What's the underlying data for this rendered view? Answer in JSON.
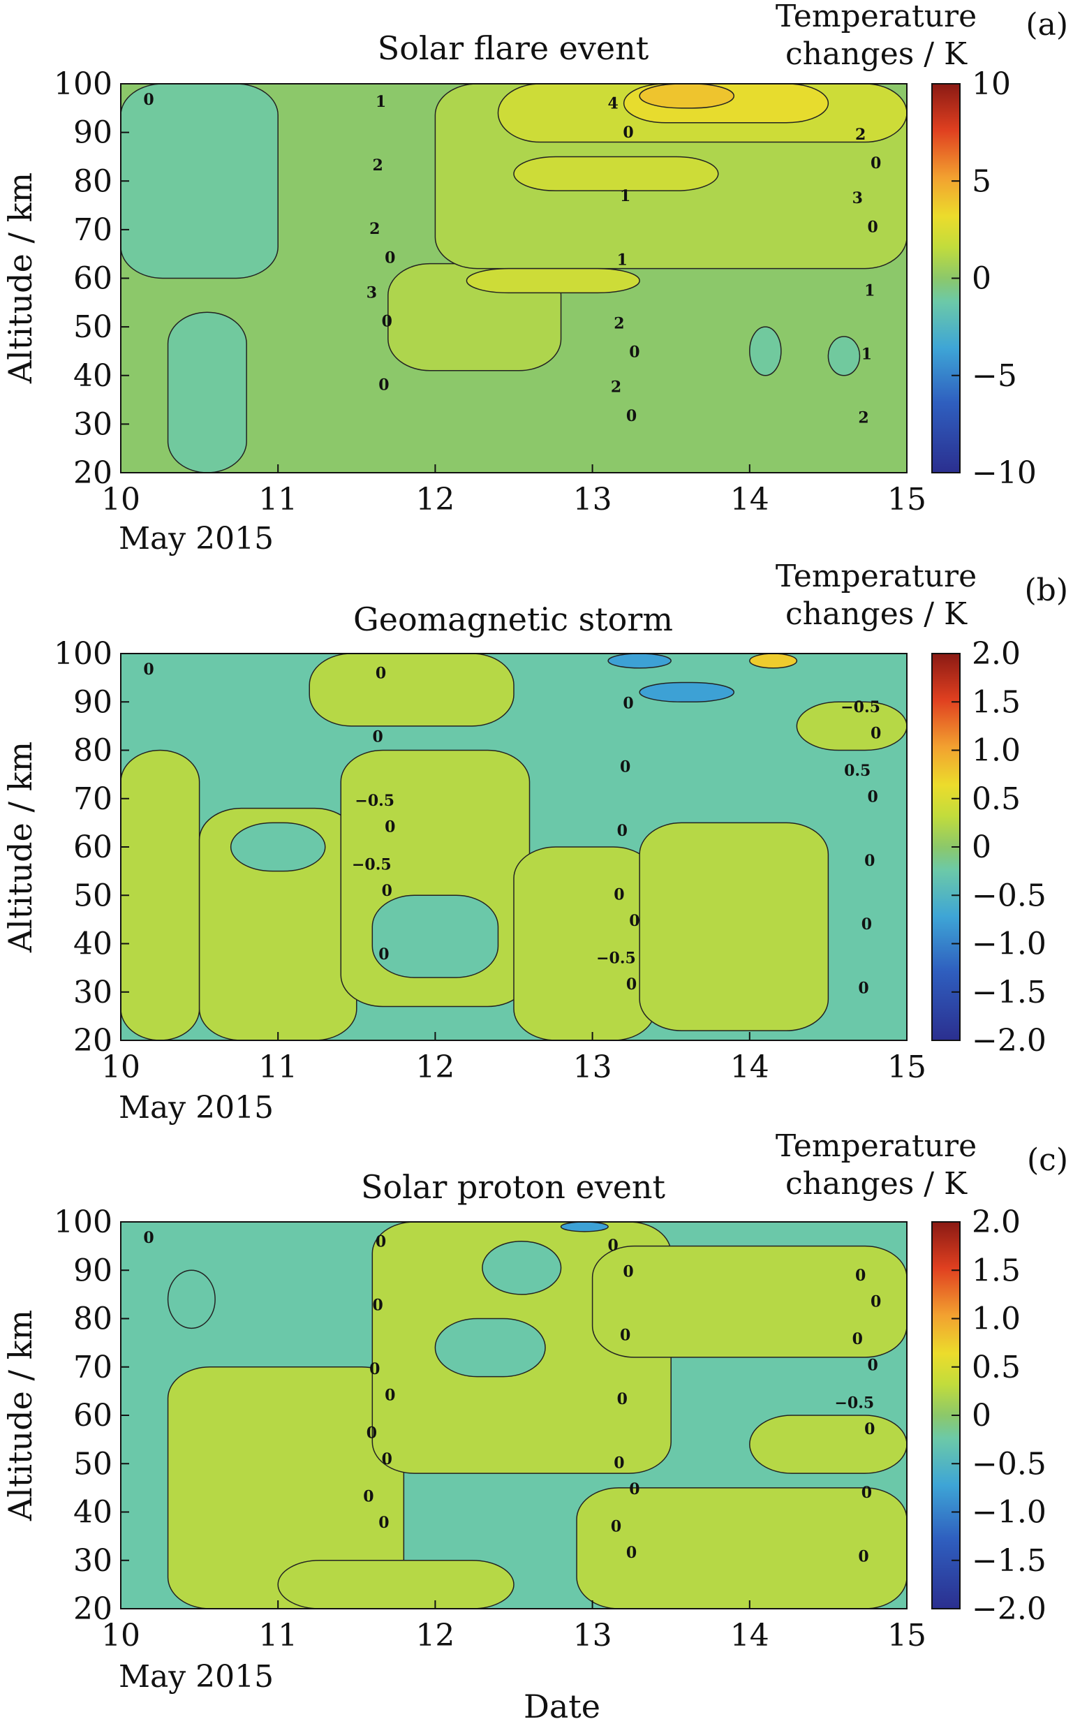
{
  "figure": {
    "x_axis_title": "Date",
    "date_caption": "May 2015"
  },
  "chart_data": [
    {
      "type": "heatmap",
      "panel_letter": "(a)",
      "title": "Solar flare event",
      "xlabel": "",
      "ylabel": "Altitude / km",
      "colorbar_title_line1": "Temperature",
      "colorbar_title_line2": "changes / K",
      "x_ticks": [
        "10",
        "11",
        "12",
        "13",
        "14",
        "15"
      ],
      "y_ticks": [
        "20",
        "30",
        "40",
        "50",
        "60",
        "70",
        "80",
        "90",
        "100"
      ],
      "xlim": [
        10,
        15
      ],
      "ylim": [
        20,
        100
      ],
      "colorbar_ticks": [
        "10",
        "5",
        "0",
        "−5",
        "−10"
      ],
      "colorbar_range": [
        -10,
        10
      ],
      "contour_labels": [
        "0",
        "0",
        "0",
        "0",
        "0",
        "0",
        "0",
        "0",
        "0",
        "1",
        "1",
        "1",
        "1",
        "1",
        "2",
        "2",
        "2",
        "2",
        "2",
        "2",
        "3",
        "3",
        "4"
      ],
      "regions": [
        {
          "level": 0,
          "x_range": [
            10,
            15
          ],
          "y_range": [
            20,
            100
          ]
        },
        {
          "level": -1,
          "x_range": [
            10.0,
            11.0
          ],
          "y_range": [
            60,
            100
          ]
        },
        {
          "level": -1,
          "x_range": [
            10.3,
            10.8
          ],
          "y_range": [
            20,
            53
          ]
        },
        {
          "level": 1,
          "x_range": [
            11.7,
            12.8
          ],
          "y_range": [
            41,
            63
          ]
        },
        {
          "level": 1,
          "x_range": [
            12.0,
            15.0
          ],
          "y_range": [
            62,
            100
          ]
        },
        {
          "level": 2,
          "x_range": [
            12.2,
            13.3
          ],
          "y_range": [
            57,
            62
          ]
        },
        {
          "level": 2,
          "x_range": [
            12.5,
            13.8
          ],
          "y_range": [
            78,
            85
          ]
        },
        {
          "level": 2,
          "x_range": [
            12.4,
            15.0
          ],
          "y_range": [
            88,
            100
          ]
        },
        {
          "level": 3,
          "x_range": [
            13.2,
            14.5
          ],
          "y_range": [
            92,
            100
          ]
        },
        {
          "level": 4,
          "x_range": [
            13.3,
            13.9
          ],
          "y_range": [
            95,
            100
          ]
        },
        {
          "level": -1,
          "x_range": [
            14.0,
            14.2
          ],
          "y_range": [
            40,
            50
          ]
        },
        {
          "level": -1,
          "x_range": [
            14.5,
            14.7
          ],
          "y_range": [
            40,
            48
          ]
        }
      ]
    },
    {
      "type": "heatmap",
      "panel_letter": "(b)",
      "title": "Geomagnetic storm",
      "xlabel": "",
      "ylabel": "Altitude / km",
      "colorbar_title_line1": "Temperature",
      "colorbar_title_line2": "changes / K",
      "x_ticks": [
        "10",
        "11",
        "12",
        "13",
        "14",
        "15"
      ],
      "y_ticks": [
        "20",
        "30",
        "40",
        "50",
        "60",
        "70",
        "80",
        "90",
        "100"
      ],
      "xlim": [
        10,
        15
      ],
      "ylim": [
        20,
        100
      ],
      "colorbar_ticks": [
        "2.0",
        "1.5",
        "1.0",
        "0.5",
        "0",
        "−0.5",
        "−1.0",
        "−1.5",
        "−2.0"
      ],
      "colorbar_range": [
        -2,
        2
      ],
      "contour_labels": [
        "0",
        "0",
        "0",
        "0",
        "0",
        "0",
        "0",
        "0",
        "0",
        "0",
        "0",
        "0",
        "0",
        "0",
        "0",
        "0",
        "0",
        "−0.5",
        "−0.5",
        "−0.5",
        "−0.5",
        "0.5"
      ],
      "regions": [
        {
          "level": -0.25,
          "x_range": [
            10,
            15
          ],
          "y_range": [
            20,
            100
          ]
        },
        {
          "level": 0.25,
          "x_range": [
            10.0,
            10.5
          ],
          "y_range": [
            20,
            80
          ]
        },
        {
          "level": 0.25,
          "x_range": [
            10.5,
            11.5
          ],
          "y_range": [
            20,
            68
          ]
        },
        {
          "level": 0.25,
          "x_range": [
            11.4,
            12.6
          ],
          "y_range": [
            27,
            80
          ]
        },
        {
          "level": 0.25,
          "x_range": [
            12.5,
            13.4
          ],
          "y_range": [
            20,
            60
          ]
        },
        {
          "level": 0.25,
          "x_range": [
            13.3,
            14.5
          ],
          "y_range": [
            22,
            65
          ]
        },
        {
          "level": 0.25,
          "x_range": [
            11.2,
            12.5
          ],
          "y_range": [
            85,
            100
          ]
        },
        {
          "level": 0.25,
          "x_range": [
            14.3,
            15.0
          ],
          "y_range": [
            80,
            90
          ]
        },
        {
          "level": -0.25,
          "x_range": [
            11.6,
            12.4
          ],
          "y_range": [
            33,
            50
          ]
        },
        {
          "level": -0.25,
          "x_range": [
            10.7,
            11.3
          ],
          "y_range": [
            55,
            65
          ]
        },
        {
          "level": -0.75,
          "x_range": [
            13.3,
            13.9
          ],
          "y_range": [
            90,
            94
          ]
        },
        {
          "level": -0.75,
          "x_range": [
            13.1,
            13.5
          ],
          "y_range": [
            97,
            100
          ]
        },
        {
          "level": 0.75,
          "x_range": [
            14.0,
            14.3
          ],
          "y_range": [
            97,
            100
          ]
        }
      ]
    },
    {
      "type": "heatmap",
      "panel_letter": "(c)",
      "title": "Solar proton event",
      "xlabel": "Date",
      "ylabel": "Altitude / km",
      "colorbar_title_line1": "Temperature",
      "colorbar_title_line2": "changes / K",
      "x_ticks": [
        "10",
        "11",
        "12",
        "13",
        "14",
        "15"
      ],
      "y_ticks": [
        "20",
        "30",
        "40",
        "50",
        "60",
        "70",
        "80",
        "90",
        "100"
      ],
      "xlim": [
        10,
        15
      ],
      "ylim": [
        20,
        100
      ],
      "colorbar_ticks": [
        "2.0",
        "1.5",
        "1.0",
        "0.5",
        "0",
        "−0.5",
        "−1.0",
        "−1.5",
        "−2.0"
      ],
      "colorbar_range": [
        -2,
        2
      ],
      "contour_labels": [
        "0",
        "0",
        "0",
        "0",
        "0",
        "0",
        "0",
        "0",
        "0",
        "0",
        "0",
        "0",
        "0",
        "0",
        "0",
        "0",
        "0",
        "0",
        "0",
        "0",
        "0",
        "0",
        "0",
        "0",
        "−0.5"
      ],
      "regions": [
        {
          "level": -0.25,
          "x_range": [
            10,
            15
          ],
          "y_range": [
            20,
            100
          ]
        },
        {
          "level": 0.25,
          "x_range": [
            10.3,
            11.8
          ],
          "y_range": [
            20,
            70
          ]
        },
        {
          "level": 0.25,
          "x_range": [
            11.6,
            13.5
          ],
          "y_range": [
            48,
            100
          ]
        },
        {
          "level": 0.25,
          "x_range": [
            12.9,
            15.0
          ],
          "y_range": [
            20,
            45
          ]
        },
        {
          "level": 0.25,
          "x_range": [
            13.0,
            15.0
          ],
          "y_range": [
            72,
            95
          ]
        },
        {
          "level": 0.25,
          "x_range": [
            11.0,
            12.5
          ],
          "y_range": [
            20,
            30
          ]
        },
        {
          "level": 0.25,
          "x_range": [
            14.0,
            15.0
          ],
          "y_range": [
            48,
            60
          ]
        },
        {
          "level": -0.25,
          "x_range": [
            10.3,
            10.6
          ],
          "y_range": [
            78,
            90
          ]
        },
        {
          "level": -0.25,
          "x_range": [
            12.0,
            12.7
          ],
          "y_range": [
            68,
            80
          ]
        },
        {
          "level": -0.25,
          "x_range": [
            12.3,
            12.8
          ],
          "y_range": [
            85,
            96
          ]
        },
        {
          "level": -0.75,
          "x_range": [
            12.8,
            13.1
          ],
          "y_range": [
            98,
            100
          ]
        }
      ]
    }
  ]
}
